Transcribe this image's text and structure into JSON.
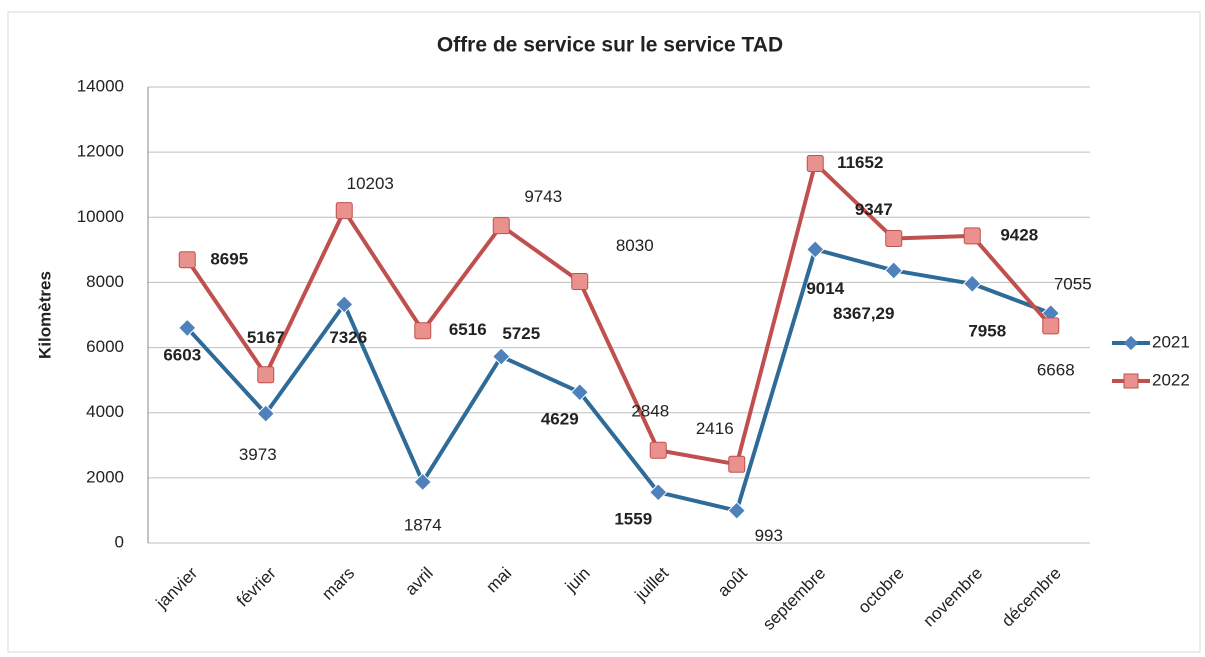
{
  "chart_data": {
    "type": "line",
    "title": "Offre de service sur le service TAD",
    "y_label": "Kilomètres",
    "categories": [
      "janvier",
      "février",
      "mars",
      "avril",
      "mai",
      "juin",
      "juillet",
      "août",
      "septembre",
      "octobre",
      "novembre",
      "décembre"
    ],
    "series": [
      {
        "name": "2021",
        "color": "#2f6b99",
        "marker_color": "#4f81bd",
        "values": [
          6603,
          3973,
          7326,
          1874,
          5725,
          4629,
          1559,
          993,
          9014,
          8367.29,
          7958,
          7055
        ],
        "value_labels": [
          "6603",
          "3973",
          "7326",
          "1874",
          "5725",
          "4629",
          "1559",
          "993",
          "9014",
          "8367,29",
          "7958",
          "7055"
        ]
      },
      {
        "name": "2022",
        "color": "#c0504d",
        "marker_color": "#e9918d",
        "values": [
          8695,
          5167,
          10203,
          6516,
          9743,
          8030,
          2848,
          2416,
          11652,
          9347,
          9428,
          6668
        ]
      }
    ],
    "ylim": [
      0,
      14000
    ],
    "yticks": [
      0,
      2000,
      4000,
      6000,
      8000,
      10000,
      12000,
      14000
    ],
    "grid": true,
    "legend": "right"
  }
}
